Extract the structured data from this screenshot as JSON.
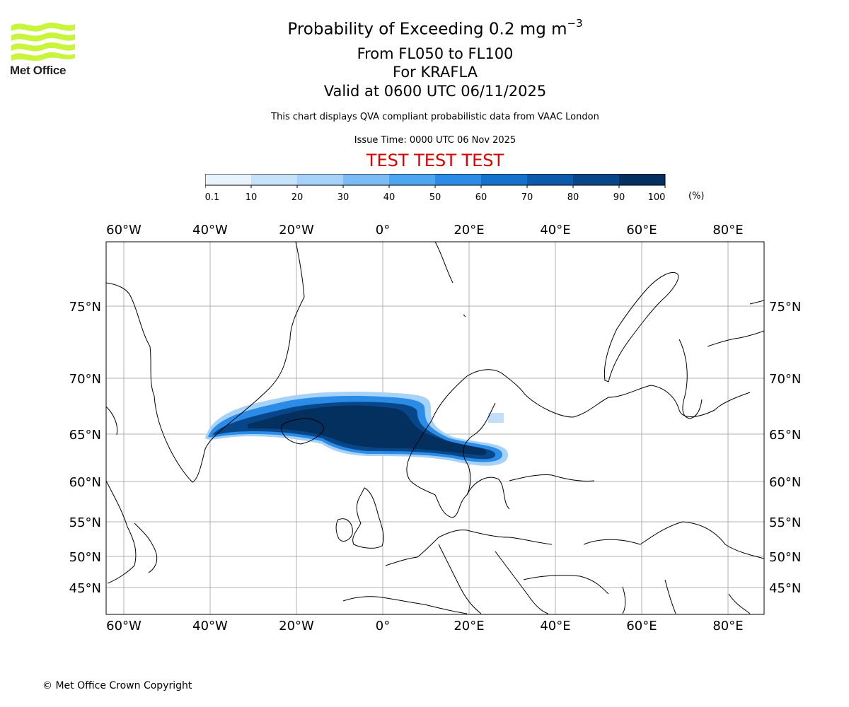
{
  "header": {
    "title_main": "Probability of Exceeding 0.2 mg m",
    "title_exponent": "−3",
    "flight_levels": "From FL050 to FL100",
    "volcano": "For KRAFLA",
    "valid_time": "Valid at 0600 UTC 06/11/2025",
    "data_note": "This chart displays QVA compliant probabilistic data from VAAC London",
    "issue_time": "Issue Time: 0000 UTC 06 Nov 2025",
    "test_banner": "TEST TEST TEST",
    "test_color": "#dd0000"
  },
  "logo": {
    "text": "Met Office",
    "icon": "met-office-wave-logo",
    "color": "#c8f53c"
  },
  "colorbar": {
    "ticks": [
      "0.1",
      "10",
      "20",
      "30",
      "40",
      "50",
      "60",
      "70",
      "80",
      "90",
      "100"
    ],
    "unit": "(%)",
    "colors": [
      "#e8f3fd",
      "#c6e2fb",
      "#a6d1f8",
      "#7cbcf4",
      "#4ea5f0",
      "#2a8ce6",
      "#1471cc",
      "#0b5aac",
      "#074789",
      "#03305f"
    ]
  },
  "map": {
    "lon_labels": [
      "60°W",
      "40°W",
      "20°W",
      "0°",
      "20°E",
      "40°E",
      "60°E",
      "80°E"
    ],
    "lon_values": [
      -60,
      -40,
      -20,
      0,
      20,
      40,
      60,
      80
    ],
    "lat_labels": [
      "75°N",
      "70°N",
      "65°N",
      "60°N",
      "55°N",
      "50°N",
      "45°N"
    ],
    "lat_values": [
      75,
      70,
      65,
      60,
      55,
      50,
      45
    ],
    "coastline_color": "#000000",
    "grid_color": "#b0b0b0"
  },
  "footer": {
    "copyright": "© Met Office Crown Copyright"
  }
}
